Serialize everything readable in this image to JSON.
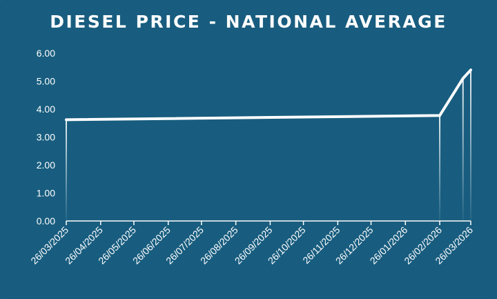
{
  "chart_data": {
    "type": "area",
    "title": "DIESEL PRICE - NATIONAL AVERAGE",
    "xlabel": "",
    "ylabel": "",
    "ylim": [
      0,
      6
    ],
    "yticks": [
      "0.00",
      "1.00",
      "2.00",
      "3.00",
      "4.00",
      "5.00",
      "6.00"
    ],
    "xticks": [
      "26/03/2025",
      "26/04/2025",
      "26/05/2025",
      "26/06/2025",
      "26/07/2025",
      "26/08/2025",
      "26/09/2025",
      "26/10/2025",
      "26/11/2025",
      "26/12/2025",
      "26/01/2026",
      "26/02/2026",
      "26/03/2026"
    ],
    "x_range": [
      "2025-03-26",
      "2026-03-26"
    ],
    "grid": false,
    "legend": "none",
    "series": [
      {
        "points": [
          {
            "x": "2025-03-26",
            "y": 3.62
          },
          {
            "x": "2026-02-26",
            "y": 3.77
          },
          {
            "x": "2026-03-19",
            "y": 5.1
          },
          {
            "x": "2026-03-26",
            "y": 5.4
          }
        ]
      }
    ],
    "colors": {
      "background": "#185d7f",
      "line": "#ffffff"
    }
  }
}
